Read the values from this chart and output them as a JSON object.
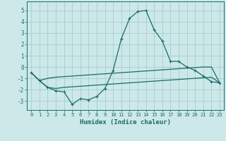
{
  "xlabel": "Humidex (Indice chaleur)",
  "xlim": [
    -0.5,
    23.5
  ],
  "ylim": [
    -3.8,
    5.8
  ],
  "yticks": [
    -3,
    -2,
    -1,
    0,
    1,
    2,
    3,
    4,
    5
  ],
  "xticks": [
    0,
    1,
    2,
    3,
    4,
    5,
    6,
    7,
    8,
    9,
    10,
    11,
    12,
    13,
    14,
    15,
    16,
    17,
    18,
    19,
    20,
    21,
    22,
    23
  ],
  "background_color": "#cce8e8",
  "grid_color": "#aacccc",
  "line_color": "#1a6b6b",
  "line1_x": [
    0,
    1,
    2,
    3,
    4,
    5,
    6,
    7,
    8,
    9,
    10,
    11,
    12,
    13,
    14,
    15,
    16,
    17,
    18,
    19,
    20,
    21,
    22,
    23
  ],
  "line1_y": [
    -0.5,
    -1.2,
    -1.8,
    -2.1,
    -2.2,
    -3.3,
    -2.8,
    -2.9,
    -2.6,
    -1.9,
    -0.3,
    2.5,
    4.3,
    4.9,
    5.0,
    3.3,
    2.3,
    0.5,
    0.5,
    0.0,
    -0.3,
    -0.8,
    -1.3,
    -1.4
  ],
  "line2_x": [
    0,
    1,
    2,
    3,
    4,
    5,
    6,
    7,
    8,
    9,
    10,
    11,
    12,
    13,
    14,
    15,
    16,
    17,
    18,
    19,
    20,
    21,
    22,
    23
  ],
  "line2_y": [
    -0.5,
    -1.2,
    -1.0,
    -0.9,
    -0.85,
    -0.8,
    -0.75,
    -0.7,
    -0.65,
    -0.6,
    -0.55,
    -0.5,
    -0.45,
    -0.4,
    -0.35,
    -0.3,
    -0.25,
    -0.2,
    -0.15,
    -0.1,
    -0.05,
    0.0,
    0.0,
    -1.4
  ],
  "line3_x": [
    0,
    1,
    2,
    3,
    4,
    5,
    6,
    7,
    8,
    9,
    10,
    11,
    12,
    13,
    14,
    15,
    16,
    17,
    18,
    19,
    20,
    21,
    22,
    23
  ],
  "line3_y": [
    -0.5,
    -1.2,
    -1.8,
    -1.9,
    -1.8,
    -1.75,
    -1.7,
    -1.65,
    -1.6,
    -1.55,
    -1.5,
    -1.45,
    -1.4,
    -1.35,
    -1.3,
    -1.25,
    -1.2,
    -1.15,
    -1.1,
    -1.05,
    -1.0,
    -0.95,
    -0.9,
    -1.4
  ]
}
